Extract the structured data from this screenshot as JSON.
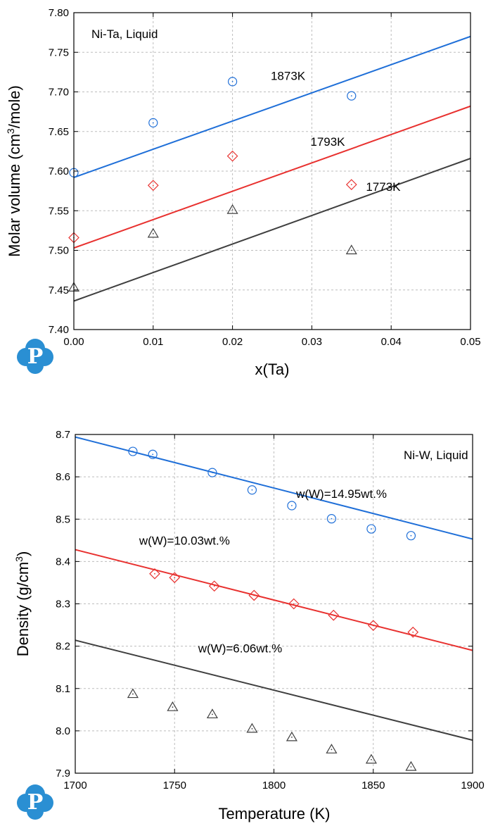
{
  "chart_data": [
    {
      "type": "scatter",
      "annotation": "Ni-Ta, Liquid",
      "xlabel": "x(Ta)",
      "ylabel_main": "Molar volume (cm",
      "ylabel_sup": "3",
      "ylabel_end": "/mole)",
      "xlim": [
        0,
        0.05
      ],
      "ylim": [
        7.4,
        7.8
      ],
      "xticks": [
        "0.00",
        "0.01",
        "0.02",
        "0.03",
        "0.04",
        "0.05"
      ],
      "xtick_values": [
        0,
        0.01,
        0.02,
        0.03,
        0.04,
        0.05
      ],
      "yticks": [
        "7.40",
        "7.45",
        "7.50",
        "7.55",
        "7.60",
        "7.65",
        "7.70",
        "7.75",
        "7.80"
      ],
      "ytick_values": [
        7.4,
        7.45,
        7.5,
        7.55,
        7.6,
        7.65,
        7.7,
        7.75,
        7.8
      ],
      "grid": true,
      "series": [
        {
          "name": "1873K",
          "label_at": [
            0.027,
            7.715
          ],
          "color": "#1f6fd8",
          "marker": "circle",
          "points": [
            [
              0,
              7.598
            ],
            [
              0.01,
              7.661
            ],
            [
              0.02,
              7.713
            ],
            [
              0.035,
              7.695
            ]
          ],
          "line": [
            [
              0,
              7.592
            ],
            [
              0.05,
              7.77
            ]
          ]
        },
        {
          "name": "1793K",
          "label_at": [
            0.032,
            7.632
          ],
          "color": "#e8312f",
          "marker": "diamond",
          "points": [
            [
              0,
              7.516
            ],
            [
              0.01,
              7.582
            ],
            [
              0.02,
              7.619
            ],
            [
              0.035,
              7.583
            ]
          ],
          "line": [
            [
              0,
              7.503
            ],
            [
              0.05,
              7.682
            ]
          ]
        },
        {
          "name": "1773K",
          "label_at": [
            0.039,
            7.575
          ],
          "color": "#3f3f3f",
          "marker": "triangle",
          "points": [
            [
              0,
              7.453
            ],
            [
              0.01,
              7.521
            ],
            [
              0.02,
              7.551
            ],
            [
              0.035,
              7.5
            ]
          ],
          "line": [
            [
              0,
              7.436
            ],
            [
              0.05,
              7.616
            ]
          ]
        }
      ]
    },
    {
      "type": "scatter",
      "annotation": "Ni-W, Liquid",
      "xlabel": "Temperature (K)",
      "ylabel_main": "Density (g/cm",
      "ylabel_sup": "3",
      "ylabel_end": ")",
      "xlim": [
        1700,
        1900
      ],
      "ylim": [
        7.9,
        8.7
      ],
      "xticks": [
        "1700",
        "1750",
        "1800",
        "1850",
        "1900"
      ],
      "xtick_values": [
        1700,
        1750,
        1800,
        1850,
        1900
      ],
      "yticks": [
        "7.9",
        "8.0",
        "8.1",
        "8.2",
        "8.3",
        "8.4",
        "8.5",
        "8.6",
        "8.7"
      ],
      "ytick_values": [
        7.9,
        8.0,
        8.1,
        8.2,
        8.3,
        8.4,
        8.5,
        8.6,
        8.7
      ],
      "grid": true,
      "series": [
        {
          "name": "w(W)=14.95wt.%",
          "label_at": [
            1834,
            8.55
          ],
          "color": "#1f6fd8",
          "marker": "circle",
          "points": [
            [
              1729,
              8.66
            ],
            [
              1739,
              8.653
            ],
            [
              1769,
              8.61
            ],
            [
              1789,
              8.569
            ],
            [
              1809,
              8.532
            ],
            [
              1829,
              8.501
            ],
            [
              1849,
              8.477
            ],
            [
              1869,
              8.461
            ]
          ],
          "line": [
            [
              1700,
              8.694
            ],
            [
              1900,
              8.453
            ]
          ]
        },
        {
          "name": "w(W)=10.03wt.%",
          "label_at": [
            1755,
            8.44
          ],
          "color": "#e8312f",
          "marker": "diamond",
          "points": [
            [
              1740,
              8.371
            ],
            [
              1750,
              8.362
            ],
            [
              1770,
              8.342
            ],
            [
              1790,
              8.32
            ],
            [
              1810,
              8.3
            ],
            [
              1830,
              8.273
            ],
            [
              1850,
              8.249
            ],
            [
              1870,
              8.233
            ]
          ],
          "line": [
            [
              1700,
              8.428
            ],
            [
              1900,
              8.19
            ]
          ]
        },
        {
          "name": "w(W)=6.06wt.%",
          "label_at": [
            1783,
            8.185
          ],
          "color": "#3f3f3f",
          "marker": "triangle",
          "points": [
            [
              1729,
              8.087
            ],
            [
              1749,
              8.056
            ],
            [
              1769,
              8.039
            ],
            [
              1789,
              8.005
            ],
            [
              1809,
              7.985
            ],
            [
              1829,
              7.956
            ],
            [
              1849,
              7.932
            ],
            [
              1869,
              7.915
            ]
          ],
          "line": [
            [
              1700,
              8.214
            ],
            [
              1900,
              7.978
            ]
          ]
        }
      ]
    }
  ],
  "logo": {
    "letter": "P",
    "color": "#2a8fd3"
  }
}
